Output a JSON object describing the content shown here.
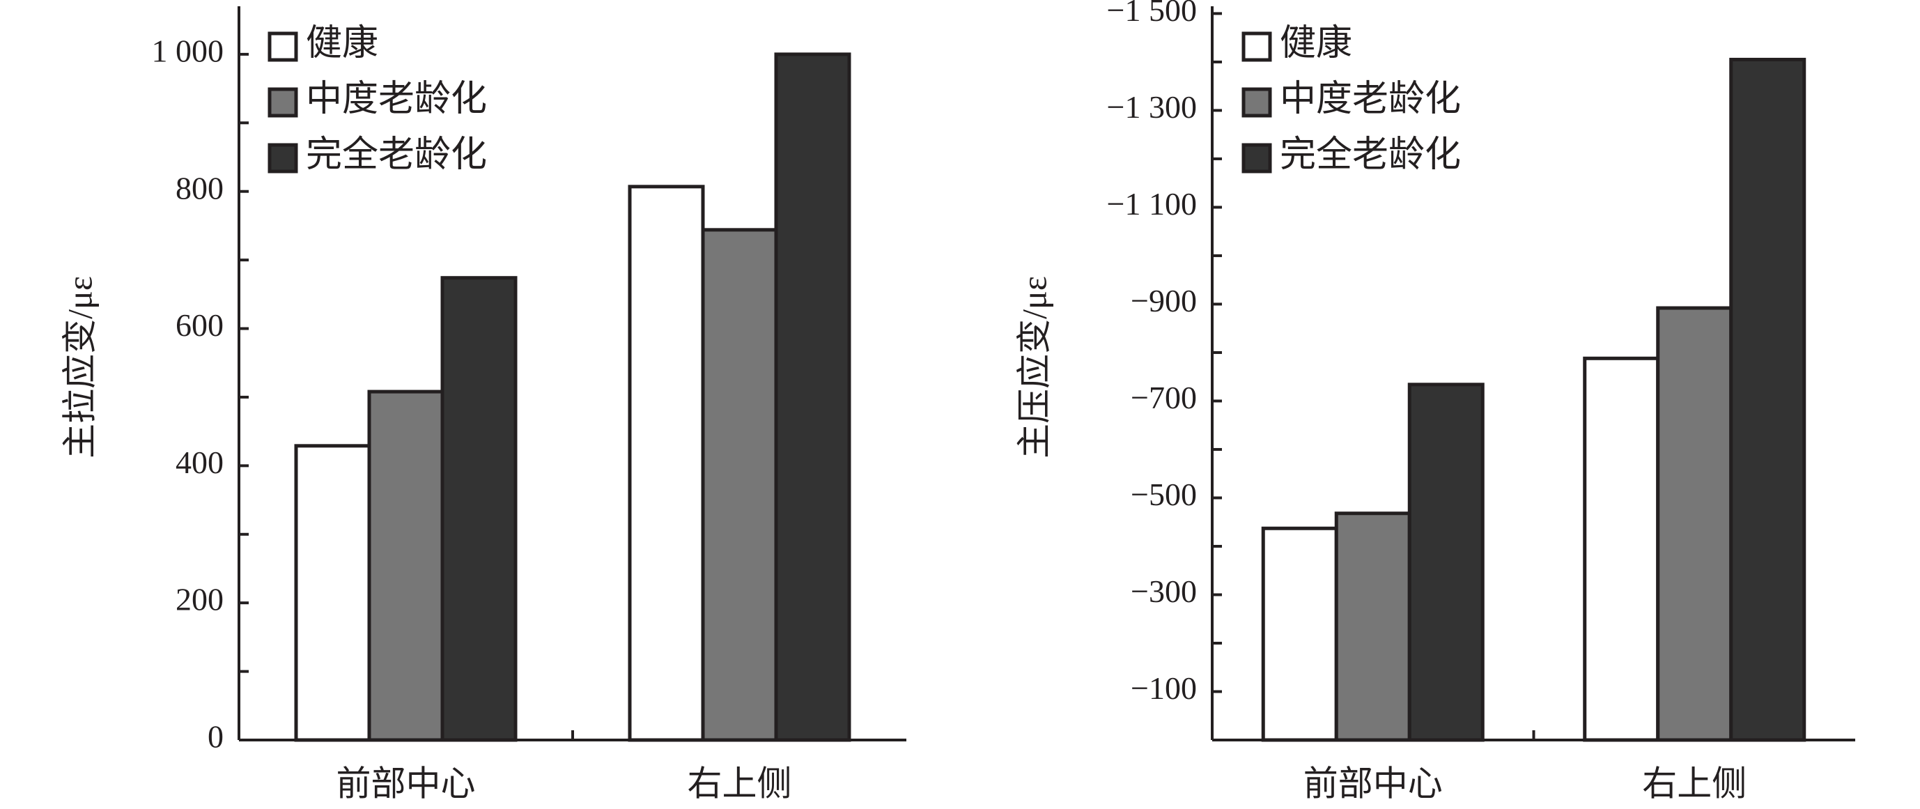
{
  "chart_data": [
    {
      "type": "bar",
      "y_label": "主拉应变/με",
      "categories": [
        "前部中心",
        "右上侧"
      ],
      "series": [
        {
          "name": "健康",
          "color": "#ffffff",
          "values": [
            429,
            807
          ]
        },
        {
          "name": "中度老龄化",
          "color": "#777777",
          "values": [
            508,
            744
          ]
        },
        {
          "name": "完全老龄化",
          "color": "#333333",
          "values": [
            674,
            1000
          ]
        }
      ],
      "ylim": [
        0,
        1070
      ],
      "yticks": [
        0,
        200,
        400,
        600,
        800,
        {
          "value": 1000,
          "label": "1 000"
        }
      ],
      "yminorticks": [
        100,
        300,
        500,
        700,
        900
      ],
      "legend": "upper left"
    },
    {
      "type": "bar",
      "y_label": "主压应变/με",
      "categories": [
        "前部中心",
        "右上侧"
      ],
      "series": [
        {
          "name": "健康",
          "color": "#ffffff",
          "values": [
            -437,
            -788
          ]
        },
        {
          "name": "中度老龄化",
          "color": "#777777",
          "values": [
            -468,
            -892
          ]
        },
        {
          "name": "完全老龄化",
          "color": "#333333",
          "values": [
            -734,
            -1405
          ]
        }
      ],
      "ylim": [
        0,
        -1515
      ],
      "yticks": [
        {
          "value": -100,
          "label": "−100"
        },
        {
          "value": -300,
          "label": "−300"
        },
        {
          "value": -500,
          "label": "−500"
        },
        {
          "value": -700,
          "label": "−700"
        },
        {
          "value": -900,
          "label": "−900"
        },
        {
          "value": -1100,
          "label": "−1 100"
        },
        {
          "value": -1300,
          "label": "−1 300"
        },
        {
          "value": -1500,
          "label": "−1 500"
        }
      ],
      "yminorticks": [
        -200,
        -400,
        -600,
        -800,
        -1000,
        -1200,
        -1400
      ],
      "legend": "upper left"
    }
  ]
}
